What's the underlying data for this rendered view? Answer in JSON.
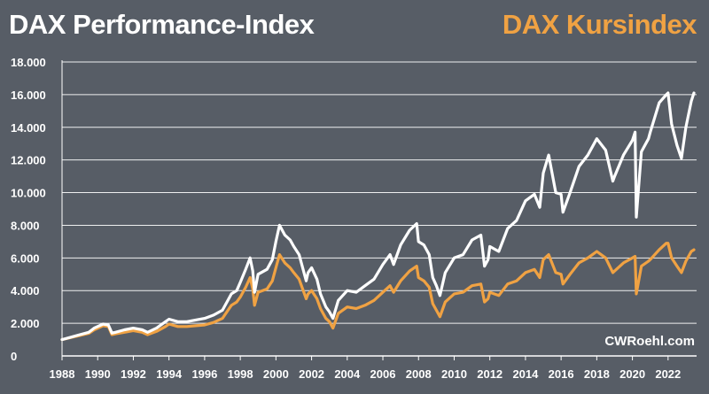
{
  "chart_data": {
    "type": "line",
    "title": "DAX Performance-Index",
    "title_right": "DAX Kursindex",
    "credit": "CWRoehl.com",
    "xlabel": "",
    "ylabel": "",
    "xlim": [
      1988,
      2023.6
    ],
    "ylim": [
      0,
      18000
    ],
    "y_ticks": [
      0,
      2000,
      4000,
      6000,
      8000,
      10000,
      12000,
      14000,
      16000,
      18000
    ],
    "y_tick_labels": [
      "0",
      "2.000",
      "4.000",
      "6.000",
      "8.000",
      "10.000",
      "12.000",
      "14.000",
      "16.000",
      "18.000"
    ],
    "x_ticks": [
      1988,
      1990,
      1992,
      1994,
      1996,
      1998,
      2000,
      2002,
      2004,
      2006,
      2008,
      2010,
      2012,
      2014,
      2016,
      2018,
      2020,
      2022
    ],
    "x_tick_labels": [
      "1988",
      "1990",
      "1992",
      "1994",
      "1996",
      "1998",
      "2000",
      "2002",
      "2004",
      "2006",
      "2008",
      "2010",
      "2012",
      "2014",
      "2016",
      "2018",
      "2020",
      "2022"
    ],
    "grid": true,
    "series": [
      {
        "name": "DAX Performance-Index",
        "color": "#ffffff",
        "x": [
          1988.0,
          1988.5,
          1989.0,
          1989.5,
          1989.8,
          1990.3,
          1990.6,
          1990.8,
          1991.0,
          1991.5,
          1992.0,
          1992.5,
          1992.8,
          1993.3,
          1993.8,
          1994.0,
          1994.5,
          1995.0,
          1995.5,
          1996.0,
          1996.5,
          1997.0,
          1997.5,
          1997.8,
          1998.0,
          1998.3,
          1998.55,
          1998.7,
          1998.8,
          1999.0,
          1999.5,
          1999.8,
          2000.0,
          2000.2,
          2000.5,
          2000.8,
          2001.0,
          2001.3,
          2001.7,
          2001.8,
          2002.0,
          2002.3,
          2002.5,
          2002.8,
          2003.0,
          2003.2,
          2003.5,
          2004.0,
          2004.5,
          2005.0,
          2005.5,
          2006.0,
          2006.4,
          2006.6,
          2007.0,
          2007.5,
          2007.9,
          2008.0,
          2008.3,
          2008.6,
          2008.8,
          2009.0,
          2009.2,
          2009.5,
          2010.0,
          2010.5,
          2011.0,
          2011.5,
          2011.7,
          2011.9,
          2012.0,
          2012.5,
          2013.0,
          2013.5,
          2014.0,
          2014.5,
          2014.8,
          2015.0,
          2015.3,
          2015.7,
          2016.0,
          2016.1,
          2016.5,
          2017.0,
          2017.5,
          2018.0,
          2018.5,
          2018.9,
          2019.0,
          2019.5,
          2020.0,
          2020.15,
          2020.22,
          2020.5,
          2020.9,
          2021.0,
          2021.5,
          2021.9,
          2022.0,
          2022.2,
          2022.5,
          2022.75,
          2023.0,
          2023.3,
          2023.45
        ],
        "values": [
          1000,
          1150,
          1300,
          1450,
          1700,
          1950,
          1900,
          1400,
          1450,
          1600,
          1700,
          1600,
          1450,
          1700,
          2100,
          2250,
          2100,
          2100,
          2200,
          2300,
          2500,
          2800,
          3800,
          4000,
          4500,
          5300,
          6000,
          5200,
          3900,
          5000,
          5300,
          5900,
          7000,
          8000,
          7400,
          7100,
          6700,
          6200,
          4600,
          5100,
          5400,
          4700,
          3800,
          3000,
          2700,
          2300,
          3400,
          4000,
          3900,
          4300,
          4700,
          5600,
          6200,
          5600,
          6800,
          7700,
          8100,
          7000,
          6800,
          6200,
          4800,
          4300,
          3700,
          5100,
          6000,
          6200,
          7100,
          7400,
          5500,
          5900,
          6700,
          6400,
          7800,
          8300,
          9500,
          9900,
          9100,
          11200,
          12300,
          10000,
          9900,
          8800,
          10000,
          11600,
          12300,
          13300,
          12600,
          10700,
          11000,
          12300,
          13200,
          13700,
          8500,
          12500,
          13300,
          13700,
          15500,
          16000,
          16100,
          14200,
          12900,
          12100,
          14000,
          15600,
          16100
        ]
      },
      {
        "name": "DAX Kursindex",
        "color": "#f0a243",
        "x": [
          1988.0,
          1988.5,
          1989.0,
          1989.5,
          1989.8,
          1990.3,
          1990.6,
          1990.8,
          1991.0,
          1991.5,
          1992.0,
          1992.5,
          1992.8,
          1993.3,
          1993.8,
          1994.0,
          1994.5,
          1995.0,
          1995.5,
          1996.0,
          1996.5,
          1997.0,
          1997.5,
          1997.8,
          1998.0,
          1998.3,
          1998.55,
          1998.7,
          1998.8,
          1999.0,
          1999.5,
          1999.8,
          2000.0,
          2000.2,
          2000.5,
          2000.8,
          2001.0,
          2001.3,
          2001.7,
          2001.8,
          2002.0,
          2002.3,
          2002.5,
          2002.8,
          2003.0,
          2003.2,
          2003.5,
          2004.0,
          2004.5,
          2005.0,
          2005.5,
          2006.0,
          2006.4,
          2006.6,
          2007.0,
          2007.5,
          2007.9,
          2008.0,
          2008.3,
          2008.6,
          2008.8,
          2009.0,
          2009.2,
          2009.5,
          2010.0,
          2010.5,
          2011.0,
          2011.5,
          2011.7,
          2011.9,
          2012.0,
          2012.5,
          2013.0,
          2013.5,
          2014.0,
          2014.5,
          2014.8,
          2015.0,
          2015.3,
          2015.7,
          2016.0,
          2016.1,
          2016.5,
          2017.0,
          2017.5,
          2018.0,
          2018.5,
          2018.9,
          2019.0,
          2019.5,
          2020.0,
          2020.15,
          2020.22,
          2020.5,
          2020.9,
          2021.0,
          2021.5,
          2021.9,
          2022.0,
          2022.2,
          2022.5,
          2022.75,
          2023.0,
          2023.3,
          2023.45
        ],
        "values": [
          1000,
          1130,
          1250,
          1380,
          1600,
          1850,
          1800,
          1300,
          1350,
          1450,
          1550,
          1450,
          1300,
          1500,
          1800,
          1950,
          1800,
          1800,
          1850,
          1900,
          2050,
          2300,
          3100,
          3300,
          3600,
          4200,
          4800,
          4100,
          3100,
          3900,
          4100,
          4600,
          5400,
          6200,
          5700,
          5400,
          5100,
          4700,
          3500,
          3800,
          4000,
          3500,
          2900,
          2300,
          2100,
          1700,
          2600,
          3000,
          2900,
          3100,
          3400,
          3900,
          4300,
          3900,
          4600,
          5200,
          5500,
          4800,
          4600,
          4200,
          3200,
          2800,
          2400,
          3300,
          3800,
          3900,
          4300,
          4400,
          3300,
          3500,
          3900,
          3700,
          4400,
          4600,
          5100,
          5300,
          4800,
          5900,
          6200,
          5100,
          5000,
          4400,
          5000,
          5700,
          6000,
          6400,
          6000,
          5100,
          5200,
          5700,
          6000,
          6100,
          3800,
          5500,
          5800,
          5900,
          6500,
          6900,
          6900,
          6000,
          5500,
          5100,
          5800,
          6400,
          6500
        ]
      }
    ]
  }
}
